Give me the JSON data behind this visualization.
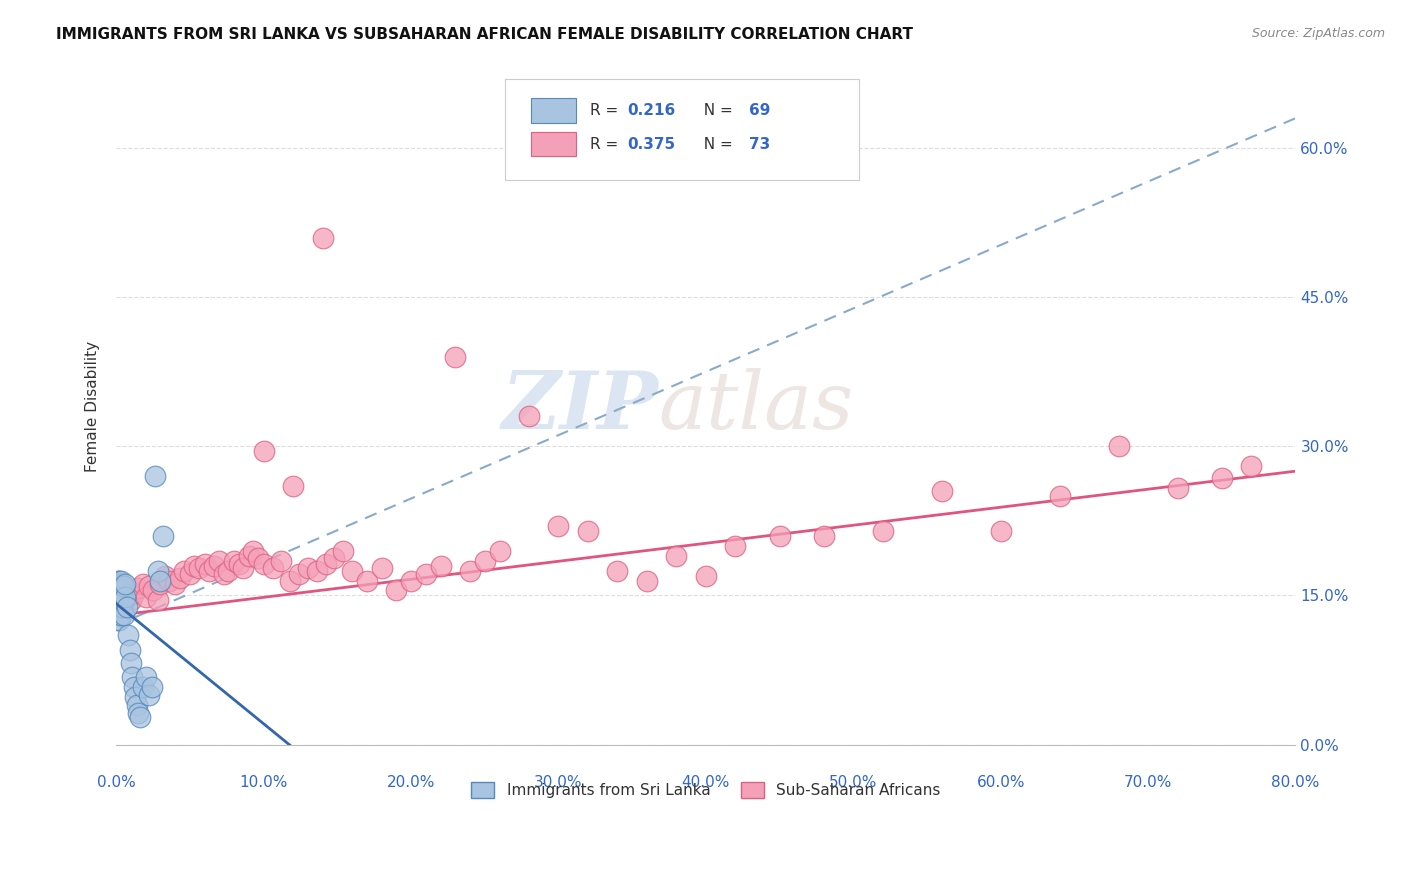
{
  "title": "IMMIGRANTS FROM SRI LANKA VS SUBSAHARAN AFRICAN FEMALE DISABILITY CORRELATION CHART",
  "source": "Source: ZipAtlas.com",
  "ylabel": "Female Disability",
  "legend_labels": [
    "Immigrants from Sri Lanka",
    "Sub-Saharan Africans"
  ],
  "sri_lanka_R": 0.216,
  "sri_lanka_N": 69,
  "subsaharan_R": 0.375,
  "subsaharan_N": 73,
  "blue_color": "#A8C4E0",
  "pink_color": "#F4A0B8",
  "blue_edge": "#5588BB",
  "pink_edge": "#E06080",
  "xlim": [
    0.0,
    0.8
  ],
  "ylim": [
    0.0,
    0.68
  ],
  "yticks": [
    0.0,
    0.15,
    0.3,
    0.45,
    0.6
  ],
  "xticks": [
    0.0,
    0.1,
    0.2,
    0.3,
    0.4,
    0.5,
    0.6,
    0.7,
    0.8
  ],
  "sri_lanka_x": [
    0.001,
    0.001,
    0.001,
    0.001,
    0.001,
    0.001,
    0.001,
    0.001,
    0.001,
    0.001,
    0.001,
    0.001,
    0.001,
    0.001,
    0.001,
    0.001,
    0.001,
    0.001,
    0.001,
    0.001,
    0.002,
    0.002,
    0.002,
    0.002,
    0.002,
    0.002,
    0.002,
    0.002,
    0.002,
    0.002,
    0.002,
    0.002,
    0.002,
    0.002,
    0.003,
    0.003,
    0.003,
    0.003,
    0.003,
    0.003,
    0.003,
    0.003,
    0.004,
    0.004,
    0.004,
    0.004,
    0.005,
    0.005,
    0.005,
    0.006,
    0.006,
    0.007,
    0.008,
    0.009,
    0.01,
    0.011,
    0.012,
    0.013,
    0.014,
    0.015,
    0.016,
    0.018,
    0.02,
    0.022,
    0.024,
    0.026,
    0.028,
    0.03,
    0.032
  ],
  "sri_lanka_y": [
    0.145,
    0.15,
    0.148,
    0.152,
    0.142,
    0.138,
    0.155,
    0.16,
    0.135,
    0.13,
    0.143,
    0.158,
    0.165,
    0.125,
    0.14,
    0.162,
    0.148,
    0.132,
    0.155,
    0.145,
    0.15,
    0.148,
    0.155,
    0.138,
    0.162,
    0.145,
    0.13,
    0.165,
    0.142,
    0.158,
    0.135,
    0.15,
    0.143,
    0.125,
    0.148,
    0.16,
    0.145,
    0.138,
    0.155,
    0.162,
    0.13,
    0.165,
    0.148,
    0.142,
    0.155,
    0.138,
    0.145,
    0.16,
    0.13,
    0.148,
    0.162,
    0.138,
    0.11,
    0.095,
    0.082,
    0.068,
    0.058,
    0.048,
    0.04,
    0.032,
    0.028,
    0.058,
    0.068,
    0.05,
    0.058,
    0.27,
    0.175,
    0.165,
    0.21
  ],
  "subsaharan_x": [
    0.005,
    0.008,
    0.01,
    0.012,
    0.015,
    0.018,
    0.02,
    0.022,
    0.025,
    0.028,
    0.03,
    0.033,
    0.036,
    0.04,
    0.043,
    0.046,
    0.05,
    0.053,
    0.056,
    0.06,
    0.063,
    0.066,
    0.07,
    0.073,
    0.076,
    0.08,
    0.083,
    0.086,
    0.09,
    0.093,
    0.096,
    0.1,
    0.106,
    0.112,
    0.118,
    0.124,
    0.13,
    0.136,
    0.142,
    0.148,
    0.154,
    0.16,
    0.17,
    0.18,
    0.19,
    0.2,
    0.21,
    0.22,
    0.23,
    0.24,
    0.25,
    0.26,
    0.28,
    0.3,
    0.32,
    0.34,
    0.36,
    0.38,
    0.4,
    0.42,
    0.45,
    0.48,
    0.52,
    0.56,
    0.6,
    0.64,
    0.68,
    0.72,
    0.75,
    0.77,
    0.1,
    0.12,
    0.14
  ],
  "subsaharan_y": [
    0.148,
    0.155,
    0.145,
    0.152,
    0.158,
    0.162,
    0.148,
    0.16,
    0.155,
    0.145,
    0.162,
    0.17,
    0.165,
    0.162,
    0.168,
    0.175,
    0.172,
    0.18,
    0.178,
    0.182,
    0.175,
    0.18,
    0.185,
    0.172,
    0.175,
    0.185,
    0.182,
    0.178,
    0.19,
    0.195,
    0.188,
    0.182,
    0.178,
    0.185,
    0.165,
    0.172,
    0.178,
    0.175,
    0.182,
    0.188,
    0.195,
    0.175,
    0.165,
    0.178,
    0.155,
    0.165,
    0.172,
    0.18,
    0.39,
    0.175,
    0.185,
    0.195,
    0.33,
    0.22,
    0.215,
    0.175,
    0.165,
    0.19,
    0.17,
    0.2,
    0.21,
    0.21,
    0.215,
    0.255,
    0.215,
    0.25,
    0.3,
    0.258,
    0.268,
    0.28,
    0.295,
    0.26,
    0.51
  ],
  "watermark_zip": "ZIP",
  "watermark_atlas": "atlas",
  "watermark_color": "#C8D8EE"
}
